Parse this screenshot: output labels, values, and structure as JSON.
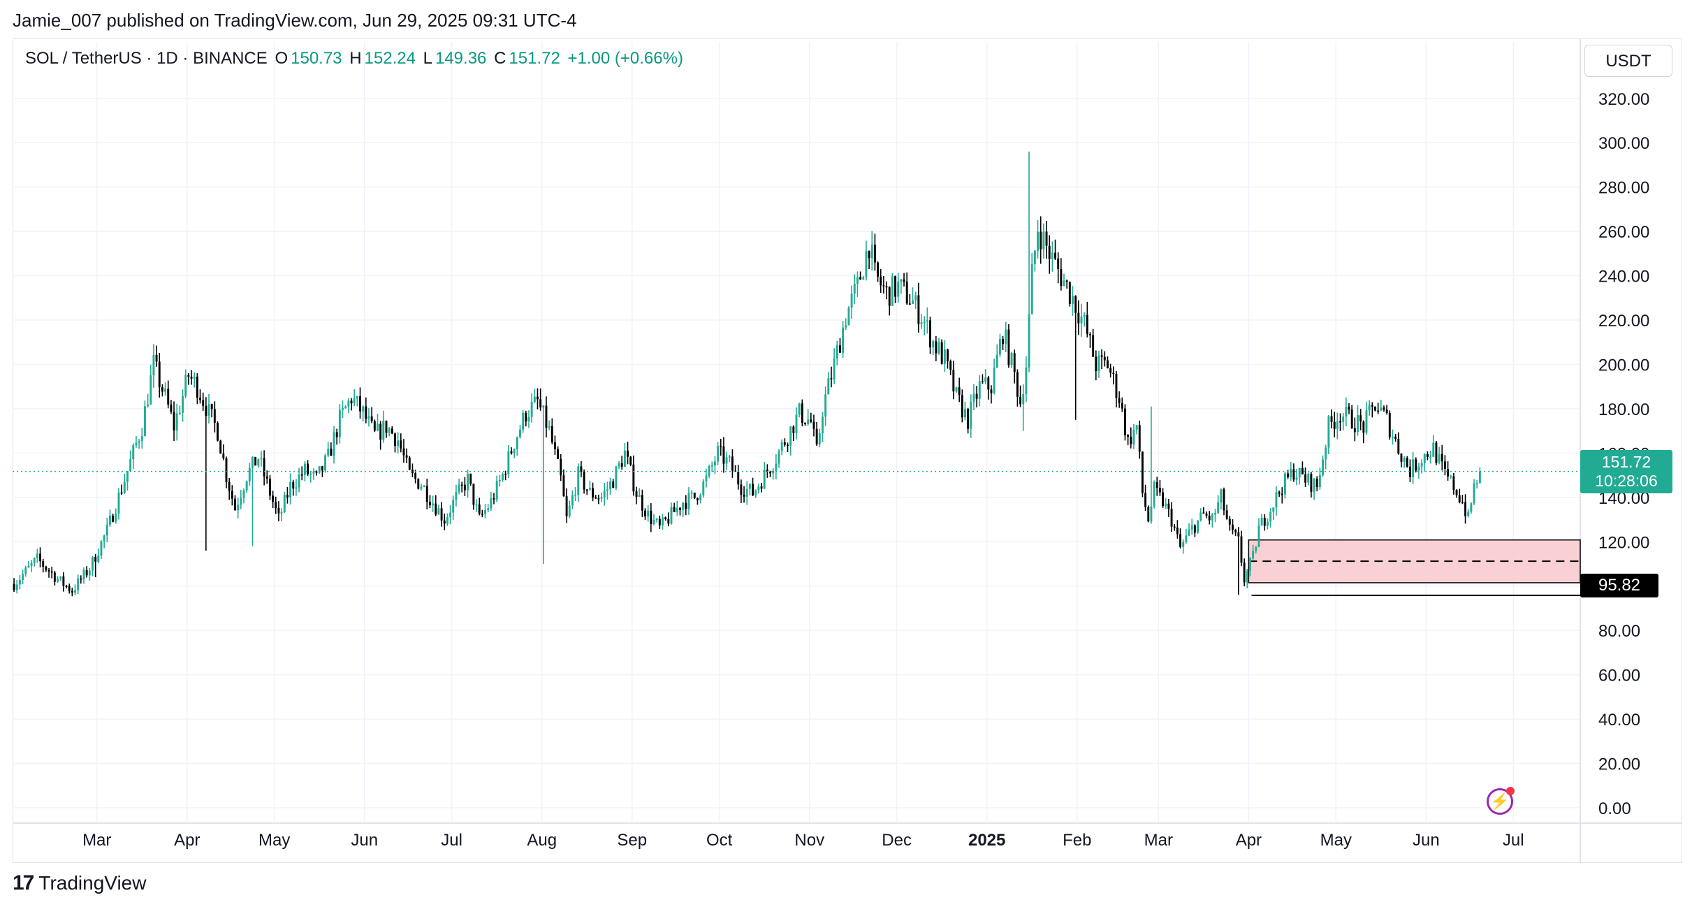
{
  "header": {
    "publisher_line": "Jamie_007 published on TradingView.com, Jun 29, 2025 09:31 UTC-4"
  },
  "legend": {
    "symbol": "SOL / TetherUS · 1D · BINANCE",
    "open_label": "O",
    "open_value": "150.73",
    "high_label": "H",
    "high_value": "152.24",
    "low_label": "L",
    "low_value": "149.36",
    "close_label": "C",
    "close_value": "151.72",
    "change": "+1.00 (+0.66%)"
  },
  "currency": "USDT",
  "price_tag": {
    "price": "151.72",
    "countdown": "10:28:06"
  },
  "low_tag": "95.82",
  "branding": {
    "logo_mark": "17",
    "name": "TradingView"
  },
  "colors": {
    "up": "#22ab94",
    "down": "#000000",
    "zone": "#f8c5cb",
    "grid": "#f0f3fa",
    "dotted": "#22ab94"
  },
  "chart_data": {
    "type": "candlestick",
    "title": "SOL / TetherUS · 1D · BINANCE",
    "xlabel": "",
    "ylabel": "USDT",
    "ylim": [
      -6,
      336
    ],
    "y_ticks": [
      "0.00",
      "20.00",
      "40.00",
      "60.00",
      "80.00",
      "100.00",
      "120.00",
      "140.00",
      "160.00",
      "180.00",
      "200.00",
      "220.00",
      "240.00",
      "260.00",
      "280.00",
      "300.00",
      "320.00"
    ],
    "x_months": [
      {
        "label": "Mar",
        "day": 29
      },
      {
        "label": "Apr",
        "day": 60
      },
      {
        "label": "May",
        "day": 90
      },
      {
        "label": "Jun",
        "day": 121
      },
      {
        "label": "Jul",
        "day": 151
      },
      {
        "label": "Aug",
        "day": 182
      },
      {
        "label": "Sep",
        "day": 213
      },
      {
        "label": "Oct",
        "day": 243
      },
      {
        "label": "Nov",
        "day": 274
      },
      {
        "label": "Dec",
        "day": 304
      },
      {
        "label": "2025",
        "day": 335,
        "bold": true
      },
      {
        "label": "Feb",
        "day": 366
      },
      {
        "label": "Mar",
        "day": 394
      },
      {
        "label": "Apr",
        "day": 425
      },
      {
        "label": "May",
        "day": 455
      },
      {
        "label": "Jun",
        "day": 486
      },
      {
        "label": "Jul",
        "day": 516
      }
    ],
    "total_days": 539,
    "last_day": 504,
    "price_anchors": [
      [
        0,
        101
      ],
      [
        8,
        112
      ],
      [
        16,
        102
      ],
      [
        20,
        98
      ],
      [
        26,
        108
      ],
      [
        32,
        125
      ],
      [
        38,
        148
      ],
      [
        44,
        172
      ],
      [
        48,
        200
      ],
      [
        52,
        185
      ],
      [
        55,
        172
      ],
      [
        60,
        195
      ],
      [
        63,
        190
      ],
      [
        67,
        178
      ],
      [
        70,
        170
      ],
      [
        73,
        150
      ],
      [
        76,
        135
      ],
      [
        80,
        150
      ],
      [
        84,
        158
      ],
      [
        88,
        142
      ],
      [
        91,
        130
      ],
      [
        95,
        145
      ],
      [
        100,
        152
      ],
      [
        104,
        148
      ],
      [
        108,
        158
      ],
      [
        112,
        175
      ],
      [
        116,
        185
      ],
      [
        120,
        178
      ],
      [
        124,
        168
      ],
      [
        128,
        172
      ],
      [
        132,
        166
      ],
      [
        136,
        150
      ],
      [
        140,
        146
      ],
      [
        144,
        138
      ],
      [
        148,
        130
      ],
      [
        152,
        140
      ],
      [
        156,
        148
      ],
      [
        160,
        130
      ],
      [
        164,
        138
      ],
      [
        168,
        150
      ],
      [
        172,
        165
      ],
      [
        176,
        178
      ],
      [
        180,
        183
      ],
      [
        184,
        170
      ],
      [
        188,
        148
      ],
      [
        190,
        130
      ],
      [
        194,
        150
      ],
      [
        198,
        142
      ],
      [
        202,
        140
      ],
      [
        206,
        148
      ],
      [
        210,
        160
      ],
      [
        214,
        142
      ],
      [
        218,
        132
      ],
      [
        222,
        126
      ],
      [
        226,
        132
      ],
      [
        230,
        138
      ],
      [
        234,
        140
      ],
      [
        238,
        148
      ],
      [
        242,
        160
      ],
      [
        246,
        155
      ],
      [
        250,
        145
      ],
      [
        254,
        142
      ],
      [
        258,
        150
      ],
      [
        262,
        158
      ],
      [
        266,
        168
      ],
      [
        270,
        178
      ],
      [
        274,
        174
      ],
      [
        276,
        160
      ],
      [
        278,
        180
      ],
      [
        282,
        200
      ],
      [
        286,
        222
      ],
      [
        290,
        235
      ],
      [
        294,
        255
      ],
      [
        296,
        240
      ],
      [
        300,
        232
      ],
      [
        304,
        235
      ],
      [
        308,
        230
      ],
      [
        312,
        222
      ],
      [
        316,
        210
      ],
      [
        320,
        202
      ],
      [
        324,
        185
      ],
      [
        328,
        175
      ],
      [
        332,
        190
      ],
      [
        336,
        190
      ],
      [
        340,
        215
      ],
      [
        344,
        195
      ],
      [
        346,
        183
      ],
      [
        348,
        200
      ],
      [
        350,
        240
      ],
      [
        352,
        262
      ],
      [
        356,
        250
      ],
      [
        360,
        240
      ],
      [
        364,
        230
      ],
      [
        368,
        218
      ],
      [
        372,
        200
      ],
      [
        376,
        200
      ],
      [
        380,
        185
      ],
      [
        383,
        165
      ],
      [
        386,
        172
      ],
      [
        388,
        142
      ],
      [
        390,
        130
      ],
      [
        392,
        143
      ],
      [
        395,
        138
      ],
      [
        398,
        130
      ],
      [
        401,
        117
      ],
      [
        405,
        126
      ],
      [
        409,
        132
      ],
      [
        412,
        130
      ],
      [
        415,
        140
      ],
      [
        418,
        125
      ],
      [
        421,
        120
      ],
      [
        423,
        103
      ],
      [
        426,
        113
      ],
      [
        428,
        126
      ],
      [
        432,
        135
      ],
      [
        436,
        145
      ],
      [
        440,
        152
      ],
      [
        444,
        148
      ],
      [
        448,
        145
      ],
      [
        452,
        172
      ],
      [
        456,
        178
      ],
      [
        460,
        175
      ],
      [
        464,
        172
      ],
      [
        468,
        182
      ],
      [
        472,
        175
      ],
      [
        476,
        162
      ],
      [
        480,
        152
      ],
      [
        484,
        158
      ],
      [
        488,
        162
      ],
      [
        492,
        150
      ],
      [
        495,
        145
      ],
      [
        498,
        138
      ],
      [
        500,
        130
      ],
      [
        502,
        145
      ],
      [
        504,
        151.72
      ]
    ],
    "candles": [],
    "spike_wicks": [
      {
        "day": 28,
        "low": 104
      },
      {
        "day": 66,
        "low": 116
      },
      {
        "day": 82,
        "low": 118
      },
      {
        "day": 182,
        "low": 110
      },
      {
        "day": 349,
        "high": 296
      },
      {
        "day": 347,
        "low": 170
      },
      {
        "day": 365,
        "low": 175
      },
      {
        "day": 391,
        "high": 181
      },
      {
        "day": 421,
        "low": 96
      }
    ],
    "last_price": 151.72,
    "support_zone": {
      "top": 120.8,
      "bottom": 101.5,
      "mid": 111.2,
      "start_day": 425
    },
    "swing_low": {
      "price": 95.82,
      "start_day": 426
    }
  }
}
